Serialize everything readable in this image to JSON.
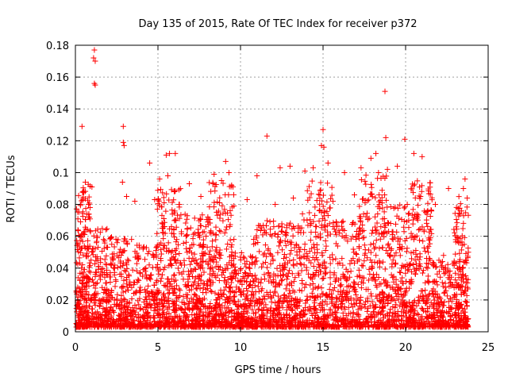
{
  "chart_data": {
    "type": "scatter",
    "title": "Day 135 of 2015, Rate Of TEC Index for receiver p372",
    "xlabel": "GPS time / hours",
    "ylabel": "ROTI / TECUs",
    "xlim": [
      0,
      25
    ],
    "ylim": [
      0,
      0.18
    ],
    "xticks": [
      0,
      5,
      10,
      15,
      20,
      25
    ],
    "yticks": [
      0,
      0.02,
      0.04,
      0.06,
      0.08,
      0.1,
      0.12,
      0.14,
      0.16,
      0.18
    ],
    "grid": true,
    "legend": "none",
    "marker": "plus",
    "color": "#ff0000",
    "x_range_of_data": [
      0,
      23.8
    ],
    "series": [
      {
        "points": [
          [
            1.15,
            0.177
          ],
          [
            1.1,
            0.172
          ],
          [
            1.2,
            0.17
          ],
          [
            1.15,
            0.156
          ],
          [
            1.2,
            0.155
          ],
          [
            0.4,
            0.129
          ],
          [
            2.9,
            0.129
          ],
          [
            2.9,
            0.119
          ],
          [
            2.95,
            0.117
          ],
          [
            4.5,
            0.106
          ],
          [
            5.5,
            0.111
          ],
          [
            5.7,
            0.112
          ],
          [
            6.05,
            0.112
          ],
          [
            11.6,
            0.123
          ],
          [
            15.0,
            0.127
          ],
          [
            14.9,
            0.117
          ],
          [
            15.05,
            0.116
          ],
          [
            18.75,
            0.151
          ],
          [
            18.8,
            0.122
          ],
          [
            19.95,
            0.121
          ],
          [
            0.6,
            0.094
          ],
          [
            1.0,
            0.091
          ],
          [
            2.85,
            0.094
          ],
          [
            3.6,
            0.082
          ],
          [
            5.1,
            0.096
          ],
          [
            5.6,
            0.098
          ],
          [
            6.9,
            0.093
          ],
          [
            8.4,
            0.099
          ],
          [
            9.1,
            0.107
          ],
          [
            9.3,
            0.1
          ],
          [
            11.0,
            0.098
          ],
          [
            12.4,
            0.103
          ],
          [
            13.0,
            0.104
          ],
          [
            13.9,
            0.101
          ],
          [
            14.4,
            0.103
          ],
          [
            15.3,
            0.106
          ],
          [
            16.3,
            0.1
          ],
          [
            17.3,
            0.103
          ],
          [
            17.9,
            0.109
          ],
          [
            18.2,
            0.112
          ],
          [
            18.9,
            0.102
          ],
          [
            19.5,
            0.104
          ],
          [
            20.5,
            0.112
          ],
          [
            21.0,
            0.11
          ],
          [
            22.6,
            0.09
          ],
          [
            23.6,
            0.096
          ],
          [
            23.5,
            0.09
          ],
          [
            21.8,
            0.08
          ],
          [
            20.1,
            0.08
          ],
          [
            16.9,
            0.086
          ],
          [
            15.6,
            0.082
          ],
          [
            13.2,
            0.084
          ],
          [
            12.1,
            0.08
          ],
          [
            10.4,
            0.083
          ],
          [
            7.6,
            0.085
          ],
          [
            6.3,
            0.08
          ],
          [
            4.8,
            0.083
          ],
          [
            3.1,
            0.085
          ],
          [
            0.3,
            0.08
          ],
          [
            0.8,
            0.072
          ],
          [
            0.15,
            0.055
          ],
          [
            0.5,
            0.062
          ],
          [
            1.3,
            0.06
          ],
          [
            2.2,
            0.055
          ],
          [
            3.4,
            0.058
          ],
          [
            4.1,
            0.052
          ],
          [
            5.3,
            0.065
          ],
          [
            6.7,
            0.06
          ],
          [
            7.9,
            0.066
          ],
          [
            8.8,
            0.063
          ],
          [
            9.6,
            0.058
          ],
          [
            10.8,
            0.055
          ],
          [
            11.8,
            0.061
          ],
          [
            12.7,
            0.057
          ],
          [
            13.6,
            0.065
          ],
          [
            14.7,
            0.06
          ],
          [
            16.0,
            0.062
          ],
          [
            17.0,
            0.058
          ],
          [
            18.5,
            0.066
          ],
          [
            19.2,
            0.061
          ],
          [
            20.8,
            0.064
          ],
          [
            21.5,
            0.059
          ],
          [
            22.3,
            0.048
          ],
          [
            23.2,
            0.056
          ],
          [
            23.8,
            0.05
          ]
        ]
      }
    ],
    "clusters": [
      {
        "x0": 0.05,
        "x1": 0.9,
        "y0": 0.003,
        "y1": 0.095,
        "n": 260
      },
      {
        "x0": 0.9,
        "x1": 2.0,
        "y0": 0.003,
        "y1": 0.065,
        "n": 200
      },
      {
        "x0": 2.0,
        "x1": 3.3,
        "y0": 0.003,
        "y1": 0.06,
        "n": 220
      },
      {
        "x0": 3.3,
        "x1": 4.9,
        "y0": 0.003,
        "y1": 0.055,
        "n": 230
      },
      {
        "x0": 4.9,
        "x1": 6.4,
        "y0": 0.003,
        "y1": 0.09,
        "n": 300
      },
      {
        "x0": 6.4,
        "x1": 8.0,
        "y0": 0.003,
        "y1": 0.075,
        "n": 300
      },
      {
        "x0": 8.0,
        "x1": 9.6,
        "y0": 0.003,
        "y1": 0.095,
        "n": 320
      },
      {
        "x0": 9.6,
        "x1": 10.8,
        "y0": 0.003,
        "y1": 0.05,
        "n": 220
      },
      {
        "x0": 10.8,
        "x1": 12.4,
        "y0": 0.003,
        "y1": 0.07,
        "n": 260
      },
      {
        "x0": 12.4,
        "x1": 14.0,
        "y0": 0.003,
        "y1": 0.075,
        "n": 250
      },
      {
        "x0": 14.0,
        "x1": 15.6,
        "y0": 0.003,
        "y1": 0.095,
        "n": 280
      },
      {
        "x0": 15.6,
        "x1": 17.2,
        "y0": 0.003,
        "y1": 0.07,
        "n": 240
      },
      {
        "x0": 17.2,
        "x1": 18.9,
        "y0": 0.003,
        "y1": 0.1,
        "n": 300
      },
      {
        "x0": 18.9,
        "x1": 20.3,
        "y0": 0.003,
        "y1": 0.08,
        "n": 240
      },
      {
        "x0": 20.3,
        "x1": 21.6,
        "y0": 0.003,
        "y1": 0.095,
        "n": 250
      },
      {
        "x0": 21.6,
        "x1": 22.9,
        "y0": 0.003,
        "y1": 0.045,
        "n": 200
      },
      {
        "x0": 22.9,
        "x1": 23.8,
        "y0": 0.003,
        "y1": 0.085,
        "n": 220
      }
    ]
  }
}
